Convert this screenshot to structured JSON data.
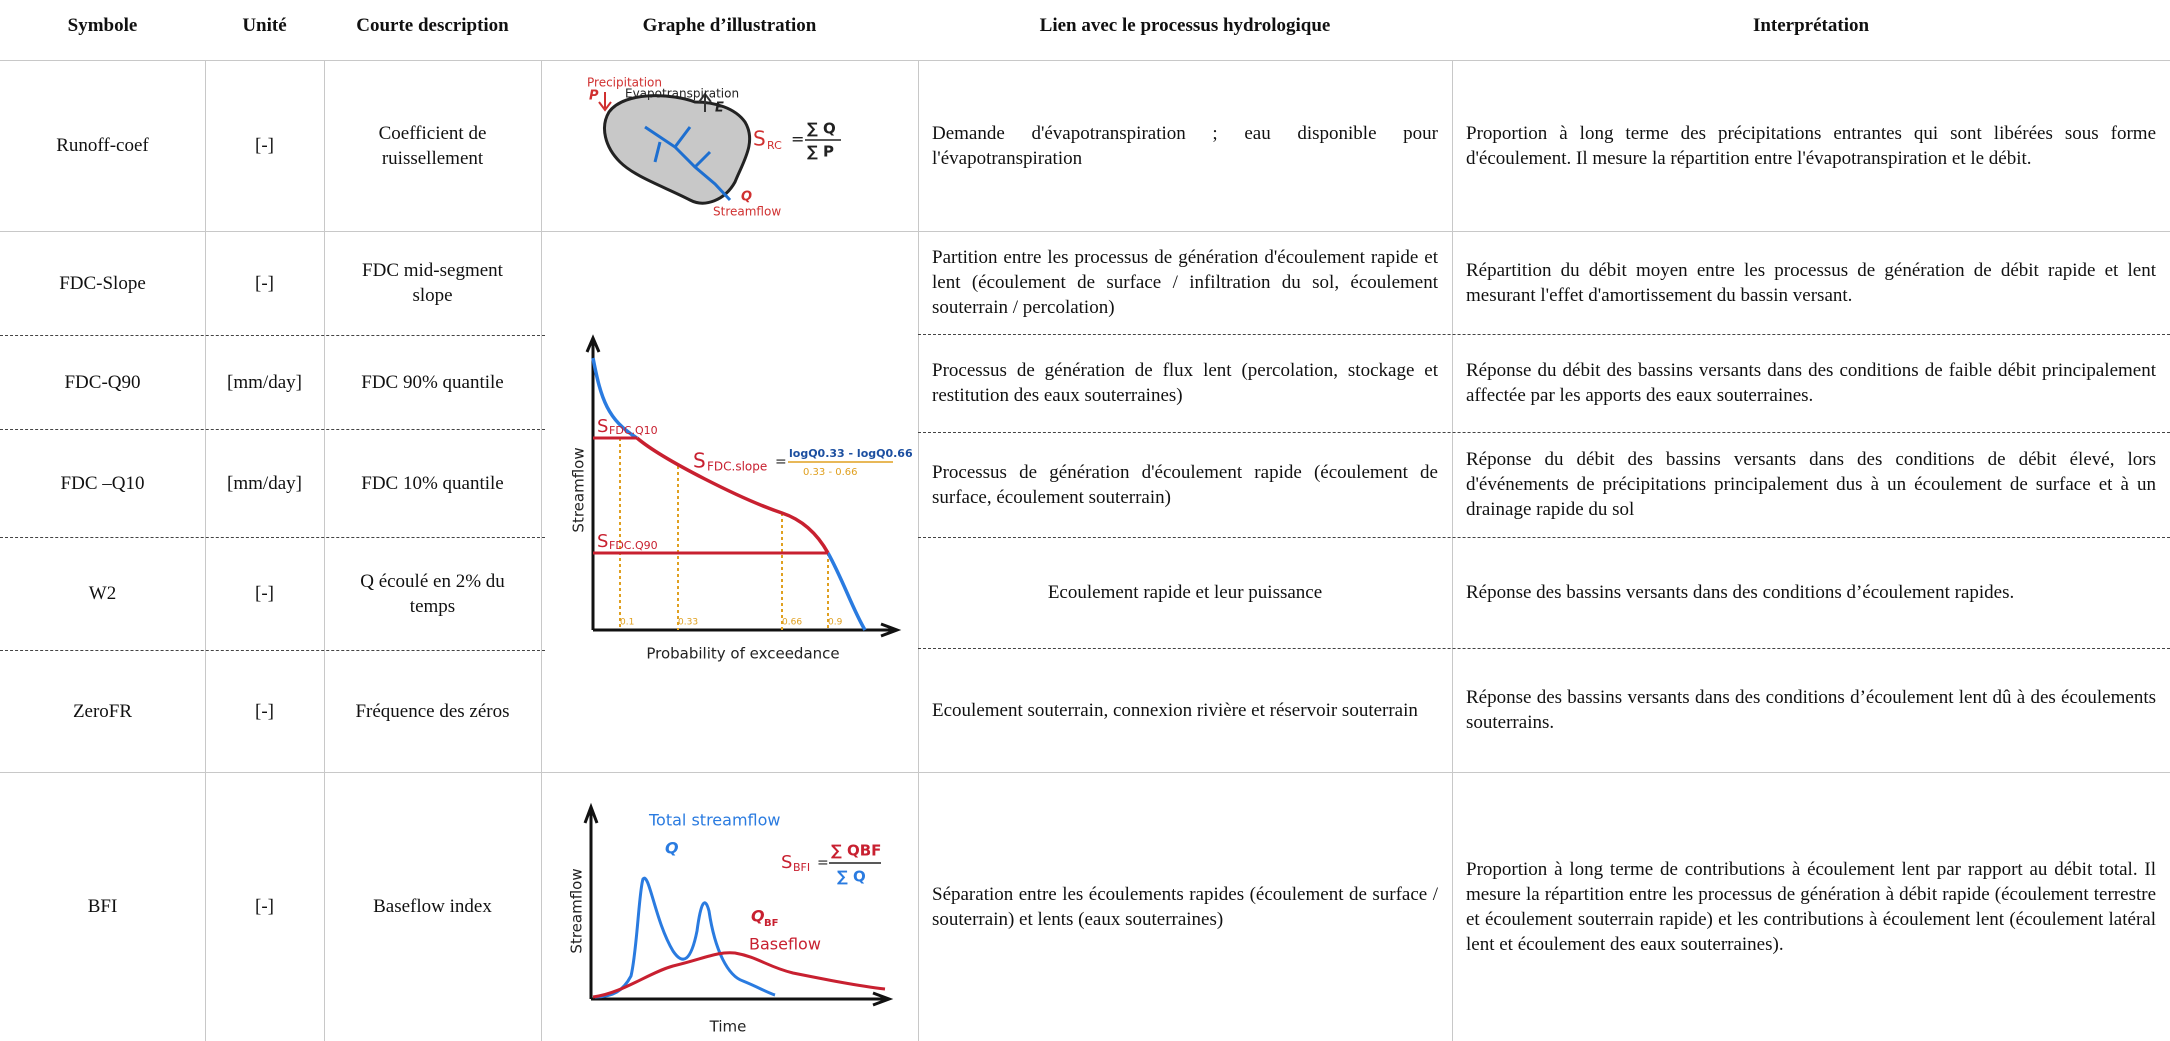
{
  "header": {
    "columns": [
      "Symbole",
      "Unité",
      "Courte description",
      "Graphe d’illustration",
      "Lien avec le processus hydrologique",
      "Interprétation"
    ]
  },
  "rows": [
    {
      "symbol": "Runoff-coef",
      "unit": "[-]",
      "description": "Coefficient de ruissellement",
      "process": "Demande d'évapotranspiration ; eau disponible pour l'évapotranspiration",
      "interpretation": "Proportion à long terme des précipitations entrantes qui sont libérées sous forme d'écoulement. Il mesure la répartition entre l'évapotranspiration et le débit."
    },
    {
      "symbol": "FDC-Slope",
      "unit": "[-]",
      "description": "FDC mid-segment slope",
      "process": "Partition entre les processus de génération d'écoulement rapide et lent (écoulement de surface / infiltration du sol, écoulement souterrain / percolation)",
      "interpretation": "Répartition du débit moyen entre les processus de génération de débit rapide et lent mesurant l'effet d'amortissement du bassin versant."
    },
    {
      "symbol": "FDC-Q90",
      "unit": "[mm/day]",
      "description": "FDC 90% quantile",
      "process": "Processus de génération de flux lent (percolation, stockage et restitution des eaux souterraines)",
      "interpretation": "Réponse du débit des bassins versants dans des conditions de faible débit principalement affectée par les apports des eaux souterraines."
    },
    {
      "symbol": "FDC –Q10",
      "unit": "[mm/day]",
      "description": "FDC 10% quantile",
      "process": "Processus de génération d'écoulement rapide (écoulement de surface, écoulement souterrain)",
      "interpretation": "Réponse du débit des bassins versants dans des conditions de débit élevé, lors d'événements de précipitations principalement dus à un écoulement de surface et à un drainage rapide du sol"
    },
    {
      "symbol": "W2",
      "unit": "[-]",
      "description": "Q écoulé en 2% du temps",
      "process": "Ecoulement rapide et leur puissance",
      "interpretation": "Réponse des bassins versants dans des conditions d’écoulement rapides."
    },
    {
      "symbol": "ZeroFR",
      "unit": "[-]",
      "description": "Fréquence des zéros",
      "process": "Ecoulement souterrain, connexion rivière et réservoir souterrain",
      "interpretation": "Réponse des bassins versants dans des conditions d’écoulement lent dû à des écoulements souterrains."
    },
    {
      "symbol": "BFI",
      "unit": "[-]",
      "description": "Baseflow index",
      "process": "Séparation entre les écoulements rapides (écoulement de surface / souterrain) et lents (eaux souterraines)",
      "interpretation": "Proportion à long terme de contributions à écoulement lent par rapport au débit total. Il mesure la répartition entre les processus de génération à débit rapide (écoulement terrestre et écoulement souterrain rapide) et les contributions à écoulement lent (écoulement latéral lent et écoulement des eaux souterraines)."
    }
  ],
  "illustrations": {
    "runoff": {
      "precipitation": "Precipitation",
      "p": "P",
      "evapotranspiration": "Evapotranspiration",
      "e": "E",
      "streamflow": "Streamflow",
      "q": "Q",
      "s": "S",
      "sub": "RC",
      "numerator": "∑ Q",
      "denominator": "∑ P"
    },
    "fdc": {
      "y_axis": "Streamflow",
      "x_axis": "Probability of exceedance",
      "ticks": [
        "0.1",
        "0.33",
        "0.66",
        "0.9"
      ],
      "s_q10": "S",
      "sub_q10": "FDC.Q10",
      "s_q90": "S",
      "sub_q90": "FDC.Q90",
      "s_slope": "S",
      "sub_slope": "FDC.slope",
      "numerator": "logQ0.33 - logQ0.66",
      "denominator": "0.33 - 0.66"
    },
    "bfi": {
      "y_axis": "Streamflow",
      "x_axis": "Time",
      "total": "Total streamflow",
      "q": "Q",
      "qbf": "Q",
      "qbf_sub": "BF",
      "baseflow": "Baseflow",
      "s": "S",
      "s_sub": "BFI",
      "numerator": "∑ QBF",
      "denominator": "∑ Q"
    }
  }
}
